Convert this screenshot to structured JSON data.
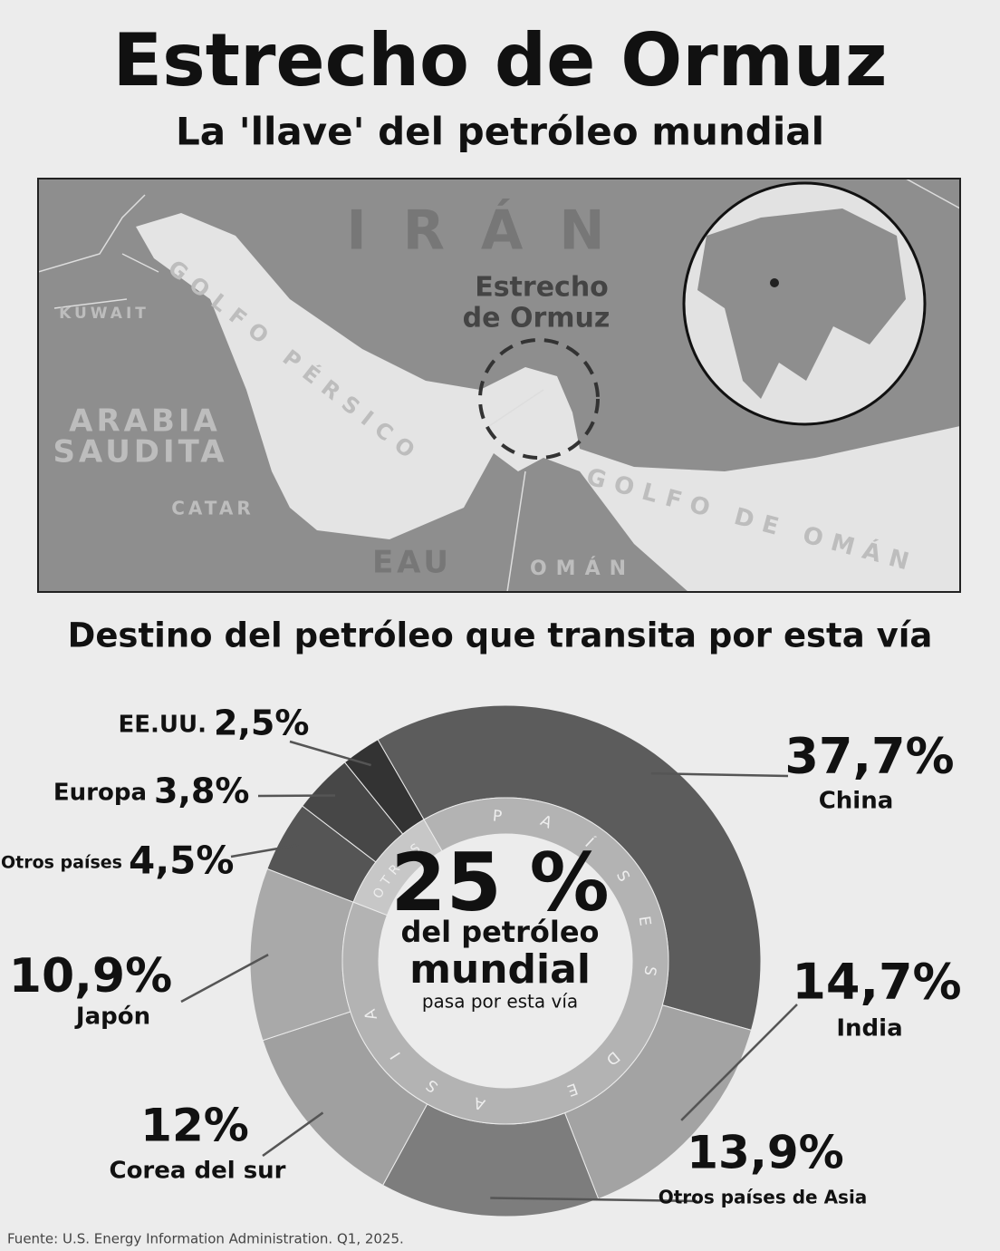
{
  "header": {
    "title": "Estrecho de Ormuz",
    "subtitle": "La 'llave' del petróleo mundial"
  },
  "map": {
    "labels": [
      "IRÁN",
      "KUWAIT",
      "GOLFO PÉRSICO",
      "ARABIA",
      "SAUDITA",
      "CATAR",
      "EAU",
      "OMÁN",
      "GOLFO DE OMÁN"
    ],
    "strait_label": [
      "Estrecho",
      "de Ormuz"
    ]
  },
  "chart_data": {
    "type": "pie",
    "title": "Destino del petróleo que transita por esta vía",
    "categories": [
      "China",
      "India",
      "Otros países de Asia",
      "Corea del sur",
      "Japón",
      "Otros países",
      "Europa",
      "EE.UU."
    ],
    "values": [
      37.7,
      14.7,
      13.9,
      12,
      10.9,
      4.5,
      3.8,
      2.5
    ],
    "value_labels": [
      "37,7%",
      "14,7%",
      "13,9%",
      "12%",
      "10,9%",
      "4,5%",
      "3,8%",
      "2,5%"
    ],
    "colors": [
      "#5c5c5c",
      "#a3a3a3",
      "#7d7d7d",
      "#a0a0a0",
      "#a9a9a9",
      "#555555",
      "#474747",
      "#333333"
    ],
    "inner_ring": [
      "PAÍSES DE ASIA",
      "OTROS"
    ],
    "center": [
      "25 %",
      "del petróleo",
      "mundial",
      "pasa por esta vía"
    ]
  },
  "footer": "Fuente: U.S. Energy Information Administration. Q1, 2025."
}
